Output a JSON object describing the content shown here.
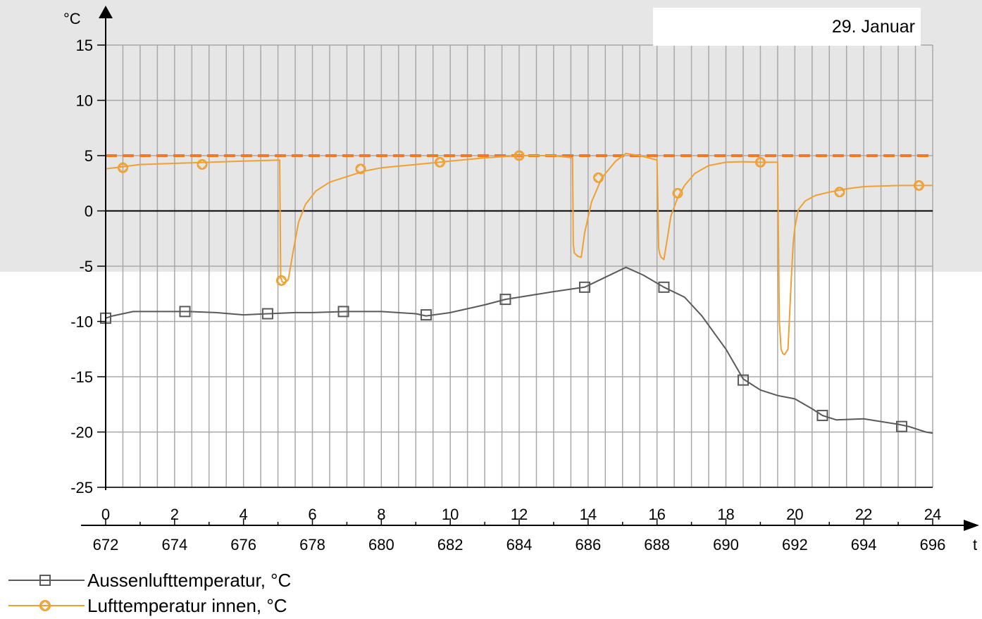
{
  "date_label": "29. Januar",
  "chart_data": {
    "type": "line",
    "y_unit_label": "°C",
    "x_unit_label": "t",
    "ylim": [
      -25,
      15
    ],
    "y_ticks": [
      15,
      10,
      5,
      0,
      -5,
      -10,
      -15,
      -20,
      -25
    ],
    "x_ticks_top": [
      "0",
      "2",
      "4",
      "6",
      "8",
      "10",
      "12",
      "14",
      "16",
      "18",
      "20",
      "22",
      "24"
    ],
    "x_ticks_bottom": [
      "672",
      "674",
      "676",
      "678",
      "680",
      "682",
      "684",
      "686",
      "688",
      "690",
      "692",
      "694",
      "696"
    ],
    "xlim": [
      0,
      24
    ],
    "grid": true,
    "frost_band": [
      -5.5,
      15
    ],
    "reference_lines": [
      {
        "y": 0,
        "color": "#000000",
        "style": "solid"
      },
      {
        "y": 5,
        "color": "#f07828",
        "style": "dashed"
      }
    ],
    "series": [
      {
        "name": "Aussenlufttemperatur, °C",
        "color": "#5a5a5a",
        "marker": "square",
        "x": [
          0,
          0.2,
          0.8,
          2,
          2.4,
          3.2,
          4,
          4.7,
          5.5,
          6,
          7,
          8,
          9,
          9.3,
          10,
          11,
          11.6,
          12,
          13,
          13.9,
          14.5,
          15.1,
          15.6,
          16.2,
          16.8,
          17.3,
          18,
          18.5,
          19,
          19.5,
          20,
          20.5,
          20.8,
          21.2,
          22,
          23,
          23.3,
          23.8,
          24
        ],
        "y": [
          -9.7,
          -9.5,
          -9.1,
          -9.1,
          -9.1,
          -9.2,
          -9.4,
          -9.3,
          -9.2,
          -9.2,
          -9.1,
          -9.1,
          -9.3,
          -9.5,
          -9.2,
          -8.5,
          -8.0,
          -7.8,
          -7.3,
          -6.9,
          -6.0,
          -5.1,
          -5.8,
          -6.9,
          -7.8,
          -9.5,
          -12.5,
          -15.2,
          -16.2,
          -16.7,
          -17.0,
          -17.9,
          -18.5,
          -18.9,
          -18.8,
          -19.3,
          -19.5,
          -20.0,
          -20.1
        ],
        "markers_x": [
          0,
          2.3,
          4.7,
          6.9,
          9.3,
          11.6,
          13.9,
          16.2,
          18.5,
          20.8,
          23.1
        ],
        "markers_y": [
          -9.7,
          -9.1,
          -9.3,
          -9.1,
          -9.4,
          -8.0,
          -6.9,
          -6.9,
          -15.3,
          -18.5,
          -19.5
        ]
      },
      {
        "name": "Lufttemperatur innen, °C",
        "color": "#f0a030",
        "marker": "diamond-circle",
        "x": [
          0,
          0.5,
          1,
          2,
          3,
          4,
          5.05,
          5.08,
          5.12,
          5.2,
          5.3,
          5.45,
          5.6,
          5.8,
          6.1,
          6.5,
          7,
          7.5,
          8,
          9,
          10,
          11,
          12,
          13,
          13.55,
          13.57,
          13.6,
          13.7,
          13.8,
          13.9,
          14.1,
          14.4,
          14.8,
          15.1,
          15.5,
          16.0,
          16.05,
          16.08,
          16.12,
          16.2,
          16.3,
          16.4,
          16.6,
          16.8,
          17.1,
          17.5,
          18,
          18.5,
          19,
          19.5,
          19.55,
          19.6,
          19.65,
          19.7,
          19.8,
          19.9,
          19.95,
          20.0,
          20.1,
          20.3,
          20.6,
          21,
          21.5,
          22,
          23,
          24
        ],
        "y": [
          3.8,
          4.0,
          4.2,
          4.3,
          4.4,
          4.5,
          4.6,
          -6.0,
          -6.4,
          -6.5,
          -6.2,
          -3.5,
          -1.0,
          0.6,
          1.8,
          2.6,
          3.1,
          3.6,
          3.9,
          4.2,
          4.5,
          4.8,
          5.0,
          5.0,
          4.8,
          -3.0,
          -3.8,
          -4.1,
          -4.2,
          -2.0,
          0.8,
          3.0,
          4.5,
          5.2,
          5.0,
          4.6,
          -3.4,
          -3.9,
          -4.2,
          -4.4,
          -2.5,
          -0.5,
          1.2,
          2.3,
          3.4,
          4.1,
          4.4,
          4.45,
          4.4,
          4.4,
          -10.0,
          -12.5,
          -12.9,
          -13.0,
          -12.5,
          -6.0,
          -3.0,
          -1.5,
          0.1,
          0.9,
          1.4,
          1.7,
          2.0,
          2.2,
          2.3,
          2.3
        ],
        "markers_x": [
          0.5,
          2.8,
          5.1,
          7.4,
          9.7,
          12.0,
          14.3,
          16.6,
          19.0,
          21.3,
          23.6
        ],
        "markers_y": [
          3.9,
          4.2,
          -6.3,
          3.8,
          4.4,
          5.0,
          3.0,
          1.6,
          4.4,
          1.7,
          2.3
        ]
      }
    ]
  }
}
